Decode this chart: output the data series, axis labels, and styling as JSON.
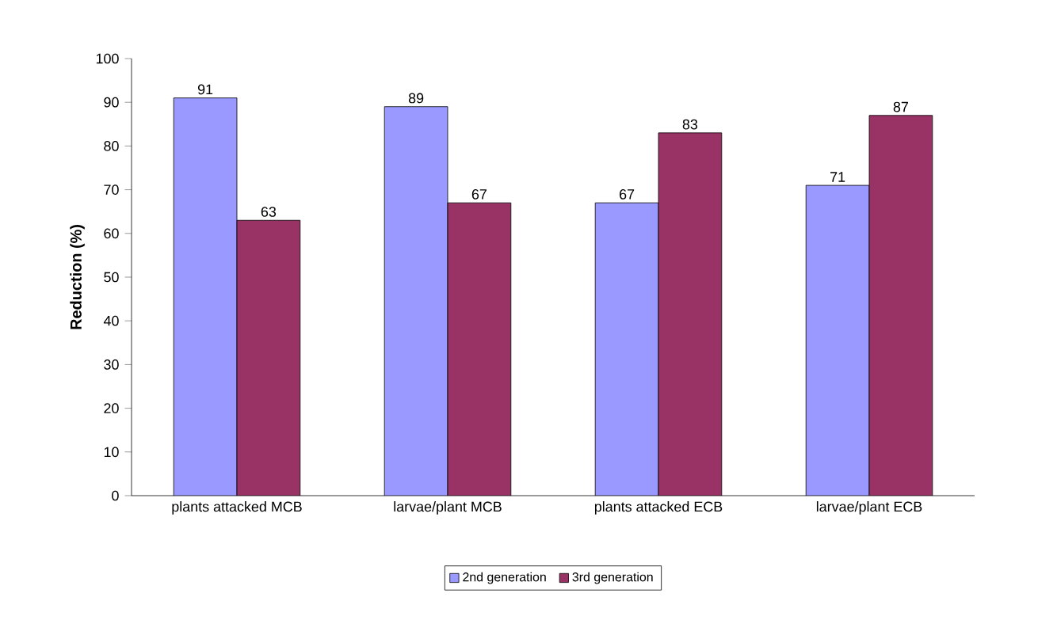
{
  "chart_data": {
    "type": "bar",
    "ylabel": "Reduction (%)",
    "categories": [
      "plants attacked MCB",
      "larvae/plant MCB",
      "plants attacked ECB",
      "larvae/plant ECB"
    ],
    "series": [
      {
        "name": "2nd generation",
        "color": "#9999ff",
        "values": [
          91,
          89,
          67,
          71
        ]
      },
      {
        "name": "3rd generation",
        "color": "#993366",
        "values": [
          63,
          67,
          83,
          87
        ]
      }
    ],
    "ylim": [
      0,
      100
    ],
    "yticks": [
      0,
      10,
      20,
      30,
      40,
      50,
      60,
      70,
      80,
      90,
      100
    ],
    "data_labels": true,
    "legend": "bottom",
    "grid": false
  }
}
